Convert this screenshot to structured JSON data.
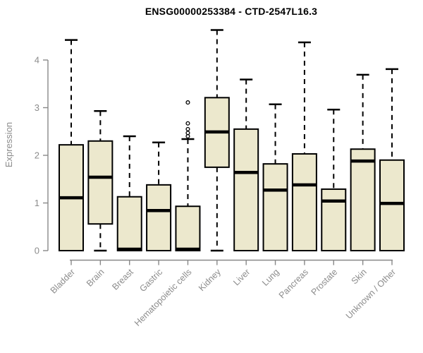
{
  "chart_data": {
    "type": "boxplot",
    "title": "ENSG00000253384 - CTD-2547L16.3",
    "xlabel": "",
    "ylabel": "Expression",
    "ylim": [
      0,
      4.7
    ],
    "yticks": [
      0,
      1,
      2,
      3,
      4
    ],
    "grid": false,
    "categories": [
      "Bladder",
      "Brain",
      "Breast",
      "Gastric",
      "Hematopoietic cells",
      "Kidney",
      "Liver",
      "Lung",
      "Pancreas",
      "Prostate",
      "Skin",
      "Unknown / Other"
    ],
    "series": [
      {
        "name": "Bladder",
        "whisker_low": 0,
        "q1": 0,
        "median": 1.11,
        "q3": 2.22,
        "whisker_high": 4.42,
        "outliers": []
      },
      {
        "name": "Brain",
        "whisker_low": 0,
        "q1": 0.56,
        "median": 1.54,
        "q3": 2.3,
        "whisker_high": 2.93,
        "outliers": []
      },
      {
        "name": "Breast",
        "whisker_low": 0,
        "q1": 0,
        "median": 0.03,
        "q3": 1.13,
        "whisker_high": 2.4,
        "outliers": []
      },
      {
        "name": "Gastric",
        "whisker_low": 0,
        "q1": 0,
        "median": 0.84,
        "q3": 1.38,
        "whisker_high": 2.27,
        "outliers": []
      },
      {
        "name": "Hematopoietic cells",
        "whisker_low": 0,
        "q1": 0,
        "median": 0.03,
        "q3": 0.93,
        "whisker_high": 2.34,
        "outliers": [
          3.11,
          2.67,
          2.55,
          2.47,
          2.4
        ]
      },
      {
        "name": "Kidney",
        "whisker_low": 0,
        "q1": 1.75,
        "median": 2.49,
        "q3": 3.21,
        "whisker_high": 4.63,
        "outliers": []
      },
      {
        "name": "Liver",
        "whisker_low": 0,
        "q1": 0,
        "median": 1.64,
        "q3": 2.55,
        "whisker_high": 3.59,
        "outliers": []
      },
      {
        "name": "Lung",
        "whisker_low": 0,
        "q1": 0,
        "median": 1.27,
        "q3": 1.82,
        "whisker_high": 3.07,
        "outliers": []
      },
      {
        "name": "Pancreas",
        "whisker_low": 0,
        "q1": 0,
        "median": 1.38,
        "q3": 2.03,
        "whisker_high": 4.37,
        "outliers": []
      },
      {
        "name": "Prostate",
        "whisker_low": 0,
        "q1": 0,
        "median": 1.04,
        "q3": 1.29,
        "whisker_high": 2.96,
        "outliers": []
      },
      {
        "name": "Skin",
        "whisker_low": 0,
        "q1": 0,
        "median": 1.88,
        "q3": 2.13,
        "whisker_high": 3.69,
        "outliers": []
      },
      {
        "name": "Unknown / Other",
        "whisker_low": 0,
        "q1": 0,
        "median": 0.99,
        "q3": 1.9,
        "whisker_high": 3.81,
        "outliers": []
      }
    ],
    "legend": null
  },
  "colors": {
    "box_fill": "#ece8cd",
    "box_border": "#000000",
    "median": "#000000",
    "whisker": "#000000",
    "axis": "#888888",
    "tick_label": "#8c8c8c",
    "title": "#000000",
    "background": "#ffffff"
  }
}
